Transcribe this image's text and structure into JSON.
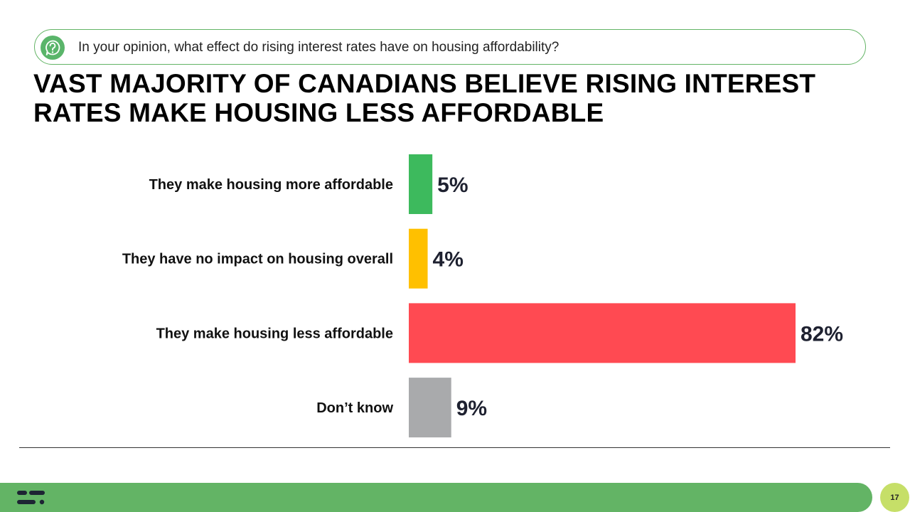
{
  "question": {
    "icon": "question-bubble-icon",
    "text": "In your opinion, what effect do rising interest rates have on housing affordability?"
  },
  "title": {
    "line1": "VAST MAJORITY OF CANADIANS BELIEVE RISING INTEREST",
    "line2": "RATES MAKE HOUSING LESS AFFORDABLE"
  },
  "chart_data": {
    "type": "bar",
    "orientation": "horizontal",
    "title": "",
    "xlabel": "",
    "ylabel": "",
    "xlim": [
      0,
      100
    ],
    "grid": false,
    "categories": [
      "They make housing more affordable",
      "They have no impact on housing overall",
      "They make housing less affordable",
      "Don’t know"
    ],
    "values": [
      5,
      4,
      82,
      9
    ],
    "labels": [
      "5%",
      "4%",
      "82%",
      "9%"
    ],
    "colors": [
      "#3dba5d",
      "#ffc000",
      "#ff4a52",
      "#a9aaac"
    ]
  },
  "footer": {
    "logo": "company-logo-icon",
    "page_number": "17",
    "bar_color": "#63b465",
    "badge_color": "#c6df68"
  }
}
